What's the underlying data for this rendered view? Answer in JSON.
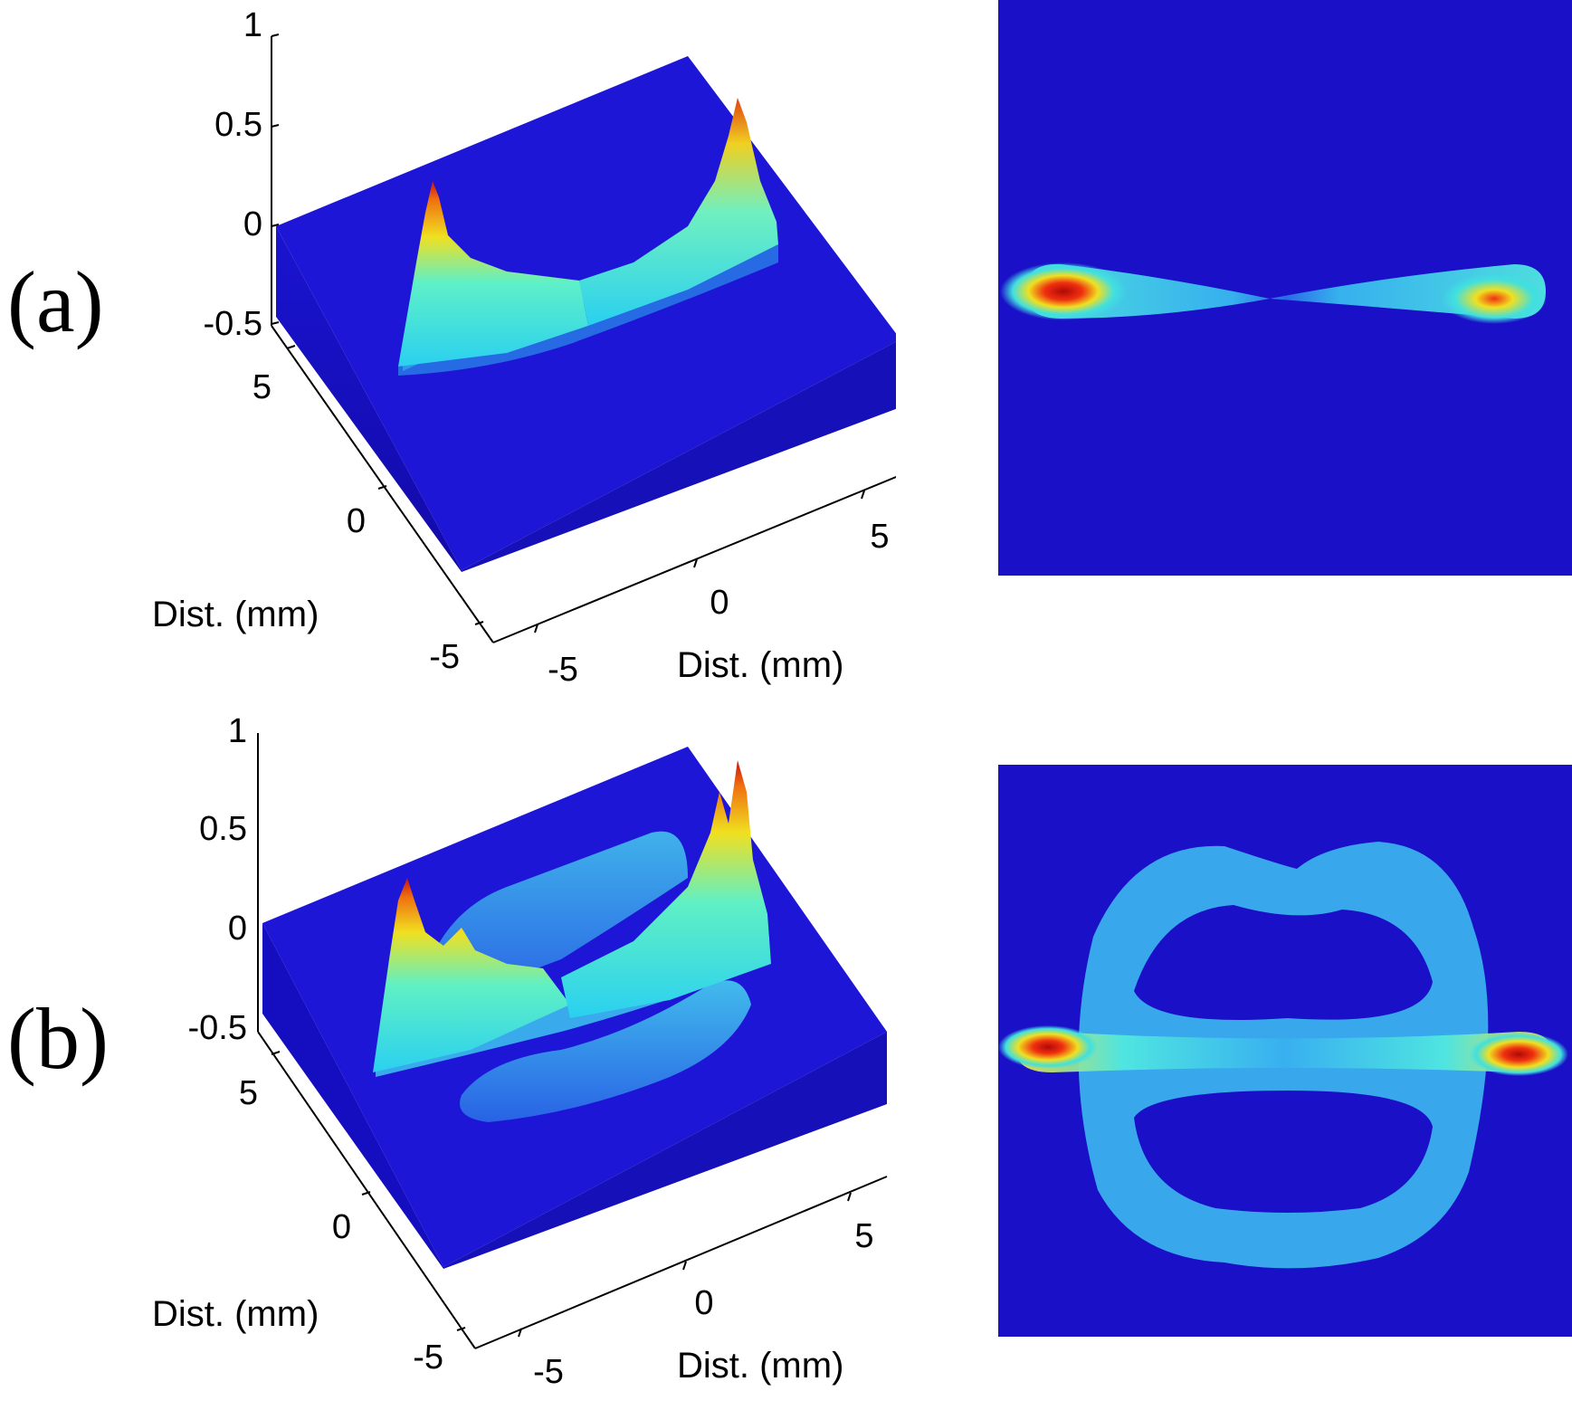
{
  "panels": [
    {
      "label": "(a)",
      "surface": {
        "z_ticks": [
          "1",
          "0.5",
          "0",
          "-0.5"
        ],
        "y_ticks": [
          "5",
          "0",
          "-5"
        ],
        "x_ticks": [
          "-5",
          "0",
          "5"
        ],
        "ylabel": "Dist. (mm)",
        "xlabel": "Dist. (mm)"
      }
    },
    {
      "label": "(b)",
      "surface": {
        "z_ticks": [
          "1",
          "0.5",
          "0",
          "-0.5"
        ],
        "y_ticks": [
          "5",
          "0",
          "-5"
        ],
        "x_ticks": [
          "-5",
          "0",
          "5"
        ],
        "ylabel": "Dist. (mm)",
        "xlabel": "Dist. (mm)"
      }
    }
  ],
  "chart_data": [
    {
      "type": "surface",
      "panel": "(a)",
      "xlabel": "Dist. (mm)",
      "ylabel": "Dist. (mm)",
      "xlim": [
        -6,
        6
      ],
      "ylim": [
        -6,
        6
      ],
      "zlim": [
        -0.5,
        1
      ],
      "description_of_data": "two peaks along a line",
      "peaks": [
        {
          "x": -5,
          "y": 0,
          "z": 0.7
        },
        {
          "x": 5,
          "y": 0,
          "z": 0.8
        }
      ]
    },
    {
      "type": "heatmap",
      "panel": "(a)",
      "colormap": "jet"
    },
    {
      "type": "surface",
      "panel": "(b)",
      "xlabel": "Dist. (mm)",
      "ylabel": "Dist. (mm)",
      "xlim": [
        -6,
        6
      ],
      "ylim": [
        -6,
        6
      ],
      "zlim": [
        -0.5,
        1
      ],
      "peaks": [
        {
          "x": -5,
          "y": 0,
          "z": 0.6
        },
        {
          "x": 5,
          "y": 0,
          "z": 0.85
        }
      ]
    },
    {
      "type": "heatmap",
      "panel": "(b)",
      "colormap": "jet"
    }
  ],
  "colors": {
    "background_blue": "#1a10c8",
    "cyan": "#3fd8f0",
    "yellow": "#f0e020",
    "red": "#d01010"
  }
}
